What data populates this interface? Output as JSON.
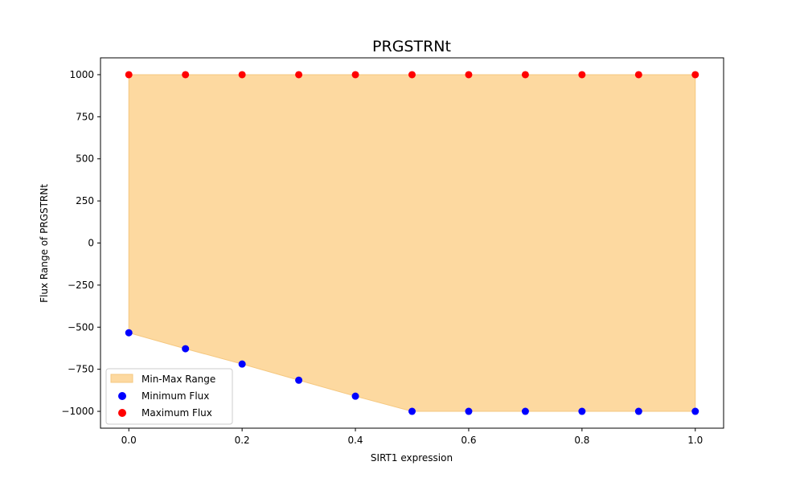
{
  "chart_data": {
    "type": "scatter",
    "title": "PRGSTRNt",
    "xlabel": "SIRT1 expression",
    "ylabel": "Flux Range of PRGSTRNt",
    "xlim": [
      -0.05,
      1.05
    ],
    "ylim": [
      -1100,
      1100
    ],
    "x": [
      0.0,
      0.1,
      0.2,
      0.3,
      0.4,
      0.5,
      0.6,
      0.7,
      0.8,
      0.9,
      1.0
    ],
    "xticks": [
      "0.0",
      "0.2",
      "0.4",
      "0.6",
      "0.8",
      "1.0"
    ],
    "xtick_values": [
      0.0,
      0.2,
      0.4,
      0.6,
      0.8,
      1.0
    ],
    "yticks": [
      "−1000",
      "−750",
      "−500",
      "−250",
      "0",
      "250",
      "500",
      "750",
      "1000"
    ],
    "ytick_values": [
      -1000,
      -750,
      -500,
      -250,
      0,
      250,
      500,
      750,
      1000
    ],
    "grid": false,
    "legend_position": "lower-left",
    "series": [
      {
        "name": "Min-Max Range",
        "kind": "fill_between",
        "color": "#fdd9a0",
        "edge_color": "#f5c880"
      },
      {
        "name": "Minimum Flux",
        "kind": "scatter",
        "color": "#0000ff",
        "values": [
          -533,
          -628,
          -719,
          -815,
          -910,
          -1000,
          -1000,
          -1000,
          -1000,
          -1000,
          -1000
        ]
      },
      {
        "name": "Maximum Flux",
        "kind": "scatter",
        "color": "#ff0000",
        "values": [
          1000,
          1000,
          1000,
          1000,
          1000,
          1000,
          1000,
          1000,
          1000,
          1000,
          1000
        ]
      }
    ]
  }
}
